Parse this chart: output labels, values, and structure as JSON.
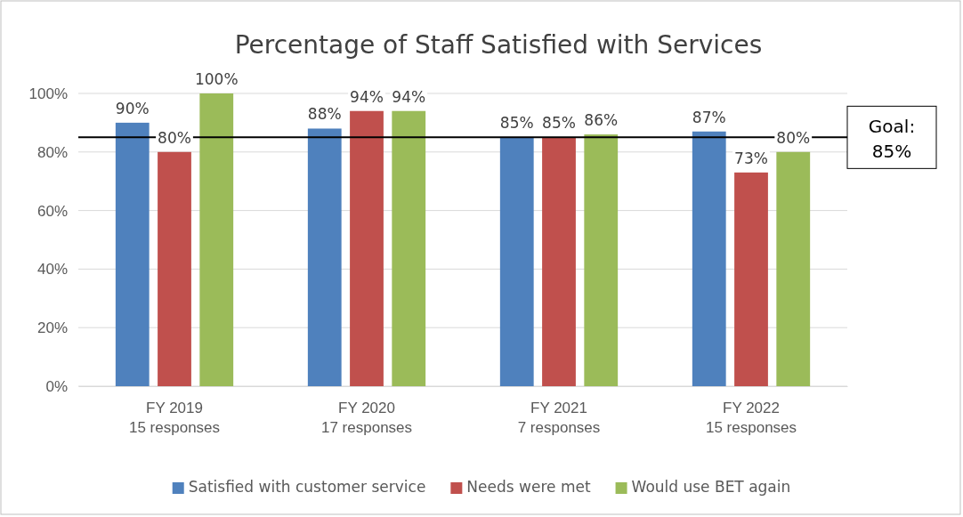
{
  "chart_data": {
    "type": "bar",
    "title": "Percentage of Staff Satisfied with Services",
    "categories": [
      "FY 2019\n15 responses",
      "FY 2020\n17 responses",
      "FY 2021\n7 responses",
      "FY 2022\n15 responses"
    ],
    "series": [
      {
        "name": "Satisfied with customer service",
        "color": "#4f81bd",
        "values": [
          90,
          88,
          85,
          87
        ]
      },
      {
        "name": "Needs were met",
        "color": "#c0504d",
        "values": [
          80,
          94,
          85,
          73
        ]
      },
      {
        "name": "Would use BET again",
        "color": "#9bbb59",
        "values": [
          100,
          94,
          86,
          80
        ]
      }
    ],
    "ylim": [
      0,
      100
    ],
    "yticks": [
      {
        "value": 0,
        "label": "0%"
      },
      {
        "value": 20,
        "label": "20%"
      },
      {
        "value": 40,
        "label": "40%"
      },
      {
        "value": 60,
        "label": "60%"
      },
      {
        "value": 80,
        "label": "80%"
      },
      {
        "value": 100,
        "label": "100%"
      }
    ],
    "value_labels": [
      [
        "90%",
        "88%",
        "85%",
        "87%"
      ],
      [
        "80%",
        "94%",
        "85%",
        "73%"
      ],
      [
        "100%",
        "94%",
        "86%",
        "80%"
      ]
    ],
    "ref_lines": [
      {
        "axis": "y",
        "value": 85,
        "label": "Goal:\n85%",
        "color": "#000000"
      }
    ],
    "grid": "y",
    "legend": "bottom"
  }
}
